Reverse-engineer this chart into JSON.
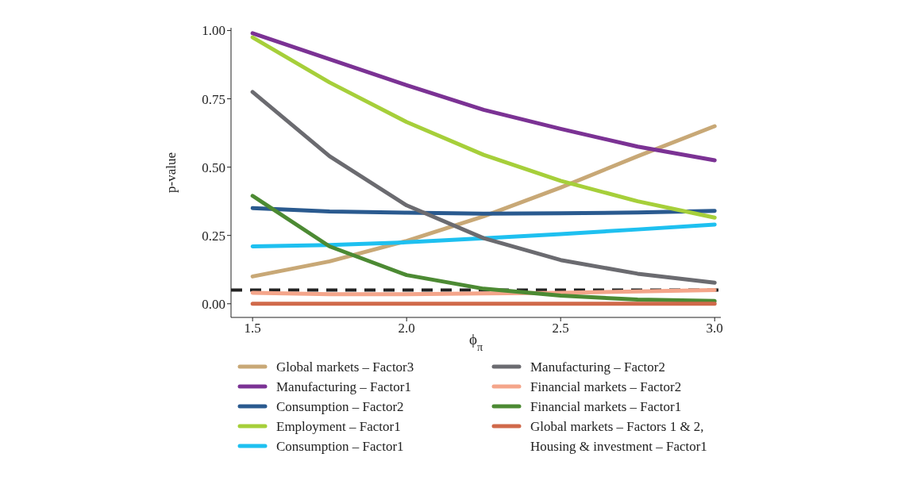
{
  "chart_data": {
    "type": "line",
    "xlabel": "ϕ$_{π}$",
    "ylabel": "p-value",
    "x": [
      1.5,
      1.75,
      2.0,
      2.25,
      2.5,
      2.75,
      3.0
    ],
    "xlim": [
      1.43,
      3.02
    ],
    "xticks": [
      1.5,
      {
        "value": 2,
        "label": "2.0"
      },
      2.5,
      {
        "value": 3,
        "label": "3.0"
      }
    ],
    "ylim": [
      -0.05,
      1.01
    ],
    "yticks": [
      {
        "value": 0,
        "label": "0.00"
      },
      0.25,
      {
        "value": 0.5,
        "label": "0.50"
      },
      0.75,
      {
        "value": 1,
        "label": "1.00"
      }
    ],
    "grid": false,
    "legend": "bottom",
    "marker": "none",
    "line_style": "solid",
    "ref_lines": [
      {
        "axis": "y",
        "value": 0.05,
        "color": "#222222",
        "line_style": "dashed"
      }
    ],
    "series": [
      {
        "name": "Global markets – Factor3",
        "color": "#c8a876",
        "values": [
          0.1,
          0.155,
          0.23,
          0.32,
          0.425,
          0.54,
          0.65
        ]
      },
      {
        "name": "Manufacturing – Factor1",
        "color": "#7b3294",
        "values": [
          0.99,
          0.895,
          0.8,
          0.71,
          0.64,
          0.575,
          0.525
        ]
      },
      {
        "name": "Consumption – Factor2",
        "color": "#2a5a8f",
        "values": [
          0.35,
          0.338,
          0.333,
          0.33,
          0.331,
          0.334,
          0.34
        ]
      },
      {
        "name": "Employment – Factor1",
        "color": "#a6cf3a",
        "values": [
          0.975,
          0.81,
          0.665,
          0.545,
          0.45,
          0.375,
          0.315
        ]
      },
      {
        "name": "Consumption – Factor1",
        "color": "#1ec0f0",
        "values": [
          0.21,
          0.215,
          0.225,
          0.24,
          0.255,
          0.272,
          0.29
        ]
      },
      {
        "name": "Manufacturing – Factor2",
        "color": "#6b6b70",
        "values": [
          0.775,
          0.54,
          0.36,
          0.24,
          0.16,
          0.11,
          0.077
        ]
      },
      {
        "name": "Financial markets – Factor2",
        "color": "#f4a58a",
        "values": [
          0.04,
          0.035,
          0.035,
          0.038,
          0.04,
          0.045,
          0.05
        ]
      },
      {
        "name": "Financial markets – Factor1",
        "color": "#4c8a33",
        "values": [
          0.395,
          0.21,
          0.105,
          0.055,
          0.03,
          0.015,
          0.01
        ]
      },
      {
        "name": "Global markets – Factors 1 & 2, Housing & investment – Factor1",
        "color": "#d0694a",
        "values": [
          0,
          0,
          0,
          0,
          0,
          0,
          0
        ]
      }
    ]
  }
}
